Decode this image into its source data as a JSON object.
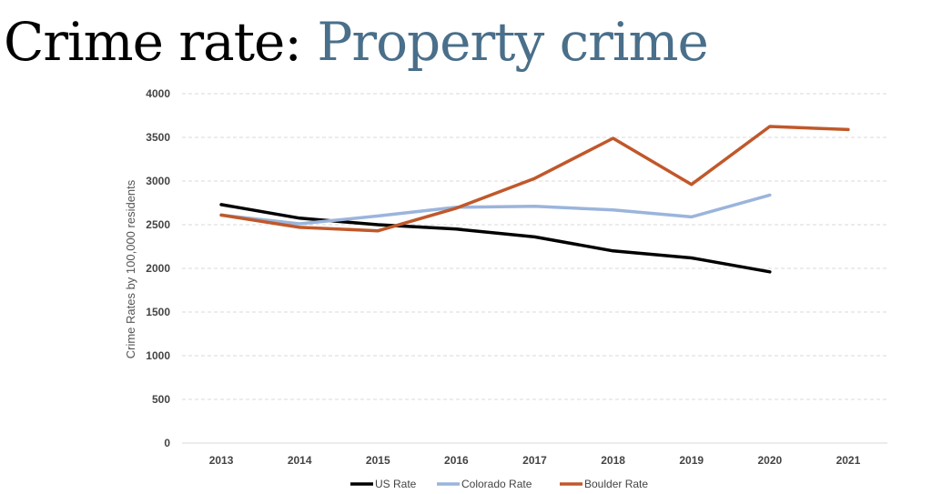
{
  "slide": {
    "title_main": "Crime rate: ",
    "title_accent": "Property crime"
  },
  "colors": {
    "title_accent": "#4a6f8a",
    "gridline": "#d9d9d9"
  },
  "chart_data": {
    "type": "line",
    "title": "",
    "xlabel": "",
    "ylabel": "Crime Rates by 100,000 residents",
    "categories": [
      "2013",
      "2014",
      "2015",
      "2016",
      "2017",
      "2018",
      "2019",
      "2020",
      "2021"
    ],
    "ylim": [
      0,
      4000
    ],
    "yticks": [
      0,
      500,
      1000,
      1500,
      2000,
      2500,
      3000,
      3500,
      4000
    ],
    "grid": "horizontal-dashed",
    "legend_position": "bottom",
    "series": [
      {
        "name": "US Rate",
        "color": "#000000",
        "values": [
          2730,
          2575,
          2500,
          2450,
          2360,
          2200,
          2120,
          1960,
          null
        ]
      },
      {
        "name": "Colorado Rate",
        "color": "#9bb4dc",
        "values": [
          2610,
          2510,
          2600,
          2700,
          2710,
          2670,
          2590,
          2840,
          null
        ]
      },
      {
        "name": "Boulder Rate",
        "color": "#c0582a",
        "values": [
          2610,
          2470,
          2430,
          2690,
          3030,
          3490,
          2960,
          3625,
          3590
        ]
      }
    ]
  }
}
